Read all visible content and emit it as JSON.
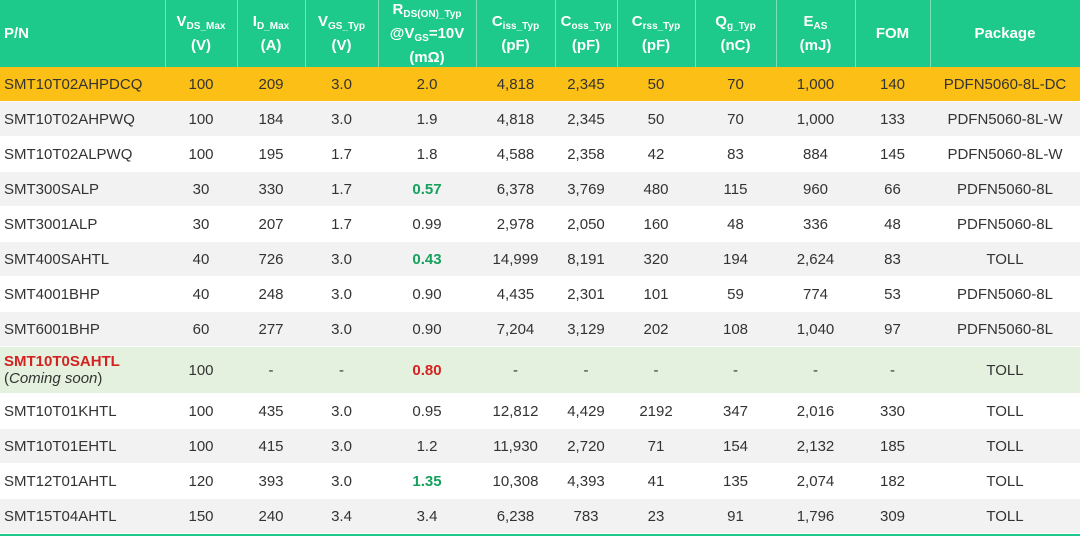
{
  "colors": {
    "header": "#1dc98b",
    "highlight": "#fbbf16",
    "green_value": "#16a05d",
    "red_value": "#d42222",
    "coming_soon_row": "#e3f1de"
  },
  "headers": [
    {
      "main": "P/N"
    },
    {
      "main": "V",
      "sub": "DS_Max",
      "unit": "(V)"
    },
    {
      "main": "I",
      "sub": "D_Max",
      "unit": "(A)"
    },
    {
      "main": "V",
      "sub": "GS_Typ",
      "unit": "(V)"
    },
    {
      "main": "R",
      "sub": "DS(ON)_Typ",
      "line2": "@V",
      "sub2": "GS",
      "after2": "=10V",
      "unit": "(mΩ)"
    },
    {
      "main": "C",
      "sub": "iss_Typ",
      "unit": "(pF)"
    },
    {
      "main": "C",
      "sub": "oss_Typ",
      "unit": "(pF)"
    },
    {
      "main": "C",
      "sub": "rss_Typ",
      "unit": "(pF)"
    },
    {
      "main": "Q",
      "sub": "g_Typ",
      "unit": "(nC)"
    },
    {
      "main": "E",
      "sub": "AS",
      "unit": "(mJ)"
    },
    {
      "main": "FOM"
    },
    {
      "main": "Package"
    }
  ],
  "rows": [
    {
      "style": "hl",
      "cells": [
        "SMT10T02AHPDCQ",
        "100",
        "209",
        "3.0",
        "2.0",
        "4,818",
        "2,345",
        "50",
        "70",
        "1,000",
        "140",
        "PDFN5060-8L-DC"
      ]
    },
    {
      "style": "alt",
      "cells": [
        "SMT10T02AHPWQ",
        "100",
        "184",
        "3.0",
        "1.9",
        "4,818",
        "2,345",
        "50",
        "70",
        "1,000",
        "133",
        "PDFN5060-8L-W"
      ]
    },
    {
      "style": "",
      "cells": [
        "SMT10T02ALPWQ",
        "100",
        "195",
        "1.7",
        "1.8",
        "4,588",
        "2,358",
        "42",
        "83",
        "884",
        "145",
        "PDFN5060-8L-W"
      ]
    },
    {
      "style": "alt",
      "rds": "g",
      "cells": [
        "SMT300SALP",
        "30",
        "330",
        "1.7",
        "0.57",
        "6,378",
        "3,769",
        "480",
        "115",
        "960",
        "66",
        "PDFN5060-8L"
      ]
    },
    {
      "style": "",
      "cells": [
        "SMT3001ALP",
        "30",
        "207",
        "1.7",
        "0.99",
        "2,978",
        "2,050",
        "160",
        "48",
        "336",
        "48",
        "PDFN5060-8L"
      ]
    },
    {
      "style": "alt",
      "rds": "g",
      "cells": [
        "SMT400SAHTL",
        "40",
        "726",
        "3.0",
        "0.43",
        "14,999",
        "8,191",
        "320",
        "194",
        "2,624",
        "83",
        "TOLL"
      ]
    },
    {
      "style": "",
      "cells": [
        "SMT4001BHP",
        "40",
        "248",
        "3.0",
        "0.90",
        "4,435",
        "2,301",
        "101",
        "59",
        "774",
        "53",
        "PDFN5060-8L"
      ]
    },
    {
      "style": "alt",
      "cells": [
        "SMT6001BHP",
        "60",
        "277",
        "3.0",
        "0.90",
        "7,204",
        "3,129",
        "202",
        "108",
        "1,040",
        "97",
        "PDFN5060-8L"
      ]
    },
    {
      "style": "soon",
      "rds": "r",
      "note": "Coming soon",
      "cells": [
        "SMT10T0SAHTL",
        "100",
        "-",
        "-",
        "0.80",
        "-",
        "-",
        "-",
        "-",
        "-",
        "-",
        "TOLL"
      ]
    },
    {
      "style": "",
      "cells": [
        "SMT10T01KHTL",
        "100",
        "435",
        "3.0",
        "0.95",
        "12,812",
        "4,429",
        "2192",
        "347",
        "2,016",
        "330",
        "TOLL"
      ]
    },
    {
      "style": "alt",
      "cells": [
        "SMT10T01EHTL",
        "100",
        "415",
        "3.0",
        "1.2",
        "11,930",
        "2,720",
        "71",
        "154",
        "2,132",
        "185",
        "TOLL"
      ]
    },
    {
      "style": "",
      "rds": "g",
      "cells": [
        "SMT12T01AHTL",
        "120",
        "393",
        "3.0",
        "1.35",
        "10,308",
        "4,393",
        "41",
        "135",
        "2,074",
        "182",
        "TOLL"
      ]
    },
    {
      "style": "alt",
      "cells": [
        "SMT15T04AHTL",
        "150",
        "240",
        "3.4",
        "3.4",
        "6,238",
        "783",
        "23",
        "91",
        "1,796",
        "309",
        "TOLL"
      ]
    }
  ]
}
